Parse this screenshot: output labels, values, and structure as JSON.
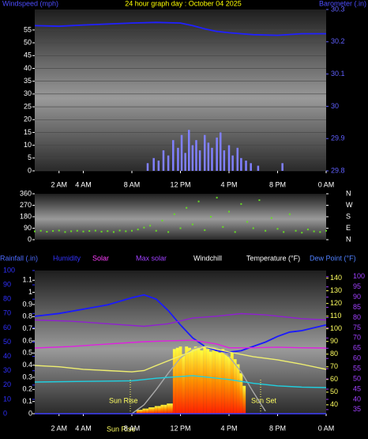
{
  "chart_data": [
    {
      "type": "bar",
      "title": "24 hour graph day : October 04 2025",
      "y_label": "Windspeed (mph)",
      "y2_label": "Barometer (.in)",
      "xlim": [
        0,
        24
      ],
      "xticks": [
        {
          "value": 2,
          "label": "2 AM"
        },
        {
          "value": 4,
          "label": "4 AM"
        },
        {
          "value": 8,
          "label": "8 AM"
        },
        {
          "value": 12,
          "label": "12 PM"
        },
        {
          "value": 16,
          "label": "4 PM"
        },
        {
          "value": 20,
          "label": "8 PM"
        },
        {
          "value": 24,
          "label": "0 AM"
        }
      ],
      "ylim": [
        0,
        63
      ],
      "yticks": [
        0,
        5,
        10,
        15,
        20,
        25,
        30,
        35,
        40,
        45,
        50,
        55
      ],
      "y2lim": [
        29.8,
        30.3
      ],
      "y2ticks": [
        29.8,
        29.9,
        30,
        30.1,
        30.2,
        30.3
      ],
      "grid": true,
      "series": [
        {
          "type": "bar",
          "color": "#8080ff",
          "x": [
            9.3,
            9.8,
            10.2,
            10.6,
            11.0,
            11.4,
            11.8,
            12.1,
            12.4,
            12.7,
            13.0,
            13.3,
            13.6,
            14.0,
            14.3,
            14.6,
            15.0,
            15.3,
            15.6,
            16.0,
            16.3,
            16.7,
            17.0,
            17.4,
            17.8,
            18.4,
            20.4
          ],
          "values": [
            3,
            5,
            4,
            8,
            6,
            12,
            9,
            14,
            7,
            16,
            10,
            12,
            8,
            14,
            11,
            9,
            13,
            15,
            8,
            10,
            6,
            9,
            5,
            4,
            3,
            2,
            3
          ]
        },
        {
          "type": "line",
          "color": "#2020ff",
          "axis": "y2",
          "x": [
            0,
            2,
            4,
            6,
            8,
            10,
            12,
            13,
            14,
            15,
            16,
            17,
            18,
            20,
            22,
            24
          ],
          "values": [
            30.25,
            30.248,
            30.252,
            30.255,
            30.258,
            30.26,
            30.258,
            30.25,
            30.24,
            30.232,
            30.228,
            30.225,
            30.222,
            30.22,
            30.225,
            30.225
          ]
        }
      ]
    },
    {
      "type": "scatter",
      "xlim": [
        0,
        24
      ],
      "ylim": [
        0,
        360
      ],
      "yticks": [
        0,
        90,
        180,
        270,
        360
      ],
      "y2ticks": [
        {
          "value": 360,
          "label": "N"
        },
        {
          "value": 270,
          "label": "W"
        },
        {
          "value": 180,
          "label": "S"
        },
        {
          "value": 90,
          "label": "E"
        },
        {
          "value": 0,
          "label": "N"
        }
      ],
      "series": [
        {
          "type": "scatter",
          "color": "#66dd22",
          "x": [
            0,
            0.5,
            1,
            1.5,
            2,
            2.5,
            3,
            3.5,
            4,
            4.5,
            5,
            5.5,
            6,
            6.5,
            7,
            7.5,
            8,
            8.5,
            9,
            9.5,
            10,
            10.5,
            11,
            11.5,
            12,
            12.5,
            13,
            13.5,
            14,
            14.5,
            15,
            15.5,
            16,
            16.5,
            17,
            17.5,
            18,
            18.5,
            19,
            19.5,
            20,
            20.5,
            21,
            21.5,
            22,
            22.5,
            23,
            23.5,
            24
          ],
          "values": [
            65,
            70,
            62,
            68,
            72,
            60,
            66,
            70,
            64,
            68,
            71,
            63,
            67,
            60,
            72,
            66,
            70,
            80,
            95,
            110,
            70,
            150,
            60,
            200,
            90,
            250,
            120,
            300,
            75,
            180,
            330,
            100,
            220,
            60,
            280,
            140,
            90,
            310,
            70,
            170,
            85,
            60,
            200,
            70,
            55,
            80,
            65,
            60,
            70
          ]
        }
      ]
    },
    {
      "type": "line",
      "legend": [
        {
          "text": "Rainfall (.in)",
          "color": "#4d6bff"
        },
        {
          "text": "Humidity",
          "color": "#3333ff"
        },
        {
          "text": "Solar",
          "color": "#ff40ff"
        },
        {
          "text": "Max solar",
          "color": "#a040ff"
        },
        {
          "text": "Windchill",
          "color": "#ffffff"
        },
        {
          "text": "Temperature (°F)",
          "color": "#ffffff"
        },
        {
          "text": "Dew Point (°F)",
          "color": "#5080ff"
        }
      ],
      "annotations": [
        "Sun Rise",
        "Sun Set",
        "Sun Rise"
      ],
      "xlim": [
        0,
        24
      ],
      "xticks": [
        {
          "value": 2,
          "label": "2 AM"
        },
        {
          "value": 4,
          "label": "4 AM"
        },
        {
          "value": 8,
          "label": "8 AM"
        },
        {
          "value": 12,
          "label": "12 PM"
        },
        {
          "value": 16,
          "label": "4 PM"
        },
        {
          "value": 20,
          "label": "8 PM"
        },
        {
          "value": 24,
          "label": "0 AM"
        }
      ],
      "ylim": [
        0,
        1.18
      ],
      "yticks": [
        0,
        0.1,
        0.2,
        0.3,
        0.4,
        0.5,
        0.6,
        0.7,
        0.8,
        0.9,
        1,
        1.1
      ],
      "y3lim": [
        0,
        100
      ],
      "y3ticks": [
        0,
        10,
        20,
        30,
        40,
        50,
        60,
        70,
        80,
        90,
        100
      ],
      "y2lim": [
        33,
        146
      ],
      "y2ticks": [
        40,
        50,
        60,
        70,
        80,
        90,
        100,
        110,
        120,
        130,
        140
      ],
      "y4lim": [
        33,
        103
      ],
      "y4ticks": [
        35,
        40,
        45,
        50,
        55,
        60,
        65,
        70,
        75,
        80,
        85,
        90,
        95,
        100
      ],
      "series": [
        {
          "type": "bar",
          "color": "#ff8000",
          "axis": "y2",
          "x": [
            8.5,
            8.75,
            9,
            9.25,
            9.5,
            9.75,
            10,
            10.25,
            10.5,
            10.75,
            11,
            11.25,
            11.5,
            11.75,
            12,
            12.25,
            12.5,
            12.75,
            13,
            13.25,
            13.5,
            13.75,
            14,
            14.25,
            14.5,
            14.75,
            15,
            15.25,
            15.5,
            15.75,
            16,
            16.25,
            16.5,
            16.75,
            17,
            17.25
          ],
          "values": [
            36,
            36,
            37,
            37,
            38,
            38,
            39,
            39,
            40,
            40,
            41,
            41,
            84,
            85,
            86,
            80,
            86,
            85,
            84,
            86,
            85,
            83,
            86,
            84,
            82,
            85,
            83,
            81,
            84,
            80,
            78,
            82,
            76,
            72,
            65,
            55
          ]
        },
        {
          "type": "line",
          "color": "#aaaaaa",
          "axis": "y2",
          "x": [
            8,
            9,
            10,
            11,
            12,
            13,
            14,
            15,
            16,
            17,
            18,
            19
          ],
          "values": [
            33,
            40,
            52,
            65,
            77,
            84,
            87,
            85,
            78,
            66,
            50,
            35
          ]
        },
        {
          "type": "line",
          "color": "#4040ff",
          "axis": "y",
          "x": [
            0,
            24
          ],
          "values": [
            0,
            0
          ]
        },
        {
          "type": "line",
          "color": "#1a1aff",
          "axis": "y3",
          "x": [
            0,
            2,
            4,
            6,
            8,
            9,
            10,
            11,
            12,
            13,
            14,
            15,
            16,
            17,
            18,
            19,
            20,
            21,
            22,
            23,
            24
          ],
          "values": [
            68,
            70,
            73,
            76,
            81,
            83,
            80,
            72,
            62,
            53,
            47,
            44,
            43,
            44,
            47,
            50,
            54,
            57,
            58,
            60,
            62
          ]
        },
        {
          "type": "line",
          "color": "#9020d0",
          "axis": "y2",
          "x": [
            0,
            3,
            6,
            9,
            11,
            13,
            15,
            17,
            19,
            20,
            22,
            24
          ],
          "values": [
            107,
            106,
            104,
            102,
            104,
            108.5,
            110,
            112,
            111,
            110,
            108,
            107
          ]
        },
        {
          "type": "line",
          "color": "#e020e0",
          "axis": "y2",
          "x": [
            0,
            3,
            6,
            9,
            11,
            13,
            15,
            16,
            18,
            20,
            22,
            24
          ],
          "values": [
            84.8,
            86,
            88,
            89.8,
            90.5,
            91,
            88,
            85,
            85,
            85.5,
            85,
            84.8
          ]
        },
        {
          "type": "line",
          "color": "#f0f070",
          "axis": "y2",
          "x": [
            0,
            2,
            4,
            6,
            8,
            9,
            10,
            12,
            14,
            16,
            18,
            20,
            22,
            24
          ],
          "values": [
            71,
            70,
            68,
            67,
            66,
            67,
            71,
            78.6,
            86,
            81.7,
            78,
            75.5,
            72,
            68
          ]
        },
        {
          "type": "line",
          "color": "#20d0e0",
          "axis": "y2",
          "x": [
            0,
            4,
            8,
            10,
            13,
            16,
            18,
            20,
            22,
            24
          ],
          "values": [
            58,
            58.5,
            59,
            61,
            63,
            60,
            57,
            55,
            54,
            53.6
          ]
        }
      ]
    }
  ]
}
